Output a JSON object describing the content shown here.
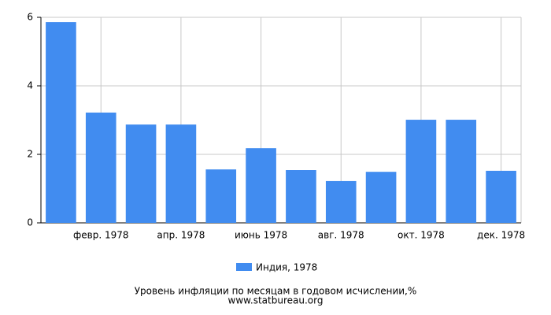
{
  "chart_data": {
    "type": "bar",
    "title": "Уровень инфляции по месяцам в годовом исчислении,%",
    "subtitle": "www.statbureau.org",
    "categories": [
      null,
      "февр. 1978",
      null,
      "апр. 1978",
      null,
      "июнь 1978",
      null,
      "авг. 1978",
      null,
      "окт. 1978",
      null,
      "дек. 1978"
    ],
    "series": [
      {
        "name": "Индия, 1978",
        "color": "#418cf0",
        "values": [
          5.86,
          3.22,
          2.87,
          2.87,
          1.56,
          2.18,
          1.54,
          1.22,
          1.49,
          3.01,
          3.01,
          1.52
        ]
      }
    ],
    "ylim": [
      0,
      6
    ],
    "yticks": [
      0,
      2,
      4,
      6
    ],
    "grid": true
  }
}
